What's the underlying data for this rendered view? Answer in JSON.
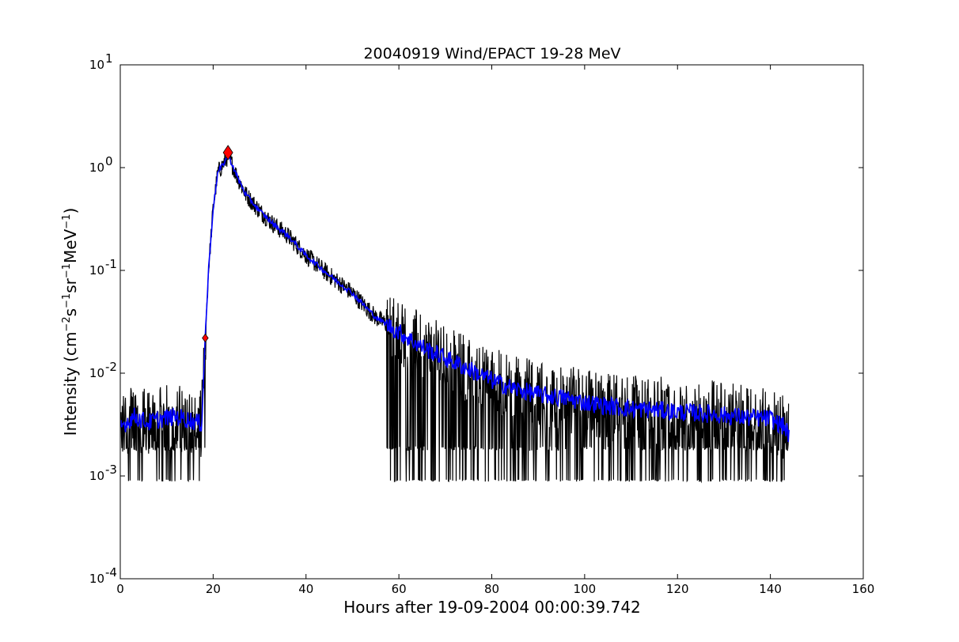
{
  "chart_data": {
    "type": "line",
    "title": "20040919 Wind/EPACT 19-28 MeV",
    "xlabel": "Hours after 19-09-2004 00:00:39.742",
    "ylabel": {
      "prefix": "Intensity (cm",
      "sup1": "−2",
      "mid1": "s",
      "sup2": "−1",
      "mid2": "sr",
      "sup3": "−1",
      "mid3": "MeV",
      "sup4": "−1",
      "suffix": ")"
    },
    "xlim": [
      0,
      160
    ],
    "ylim": [
      0.0001,
      10
    ],
    "yscale": "log",
    "grid": false,
    "xticks": [
      0,
      20,
      40,
      60,
      80,
      100,
      120,
      140,
      160
    ],
    "xtick_labels": [
      "0",
      "20",
      "40",
      "60",
      "80",
      "100",
      "120",
      "140",
      "160"
    ],
    "yticks": [
      0.0001,
      0.001,
      0.01,
      0.1,
      1,
      10
    ],
    "ytick_labels": [
      {
        "base": "10",
        "exp": "-4"
      },
      {
        "base": "10",
        "exp": "-3"
      },
      {
        "base": "10",
        "exp": "-2"
      },
      {
        "base": "10",
        "exp": "-1"
      },
      {
        "base": "10",
        "exp": "0"
      },
      {
        "base": "10",
        "exp": "1"
      }
    ],
    "series": [
      {
        "kind": "raw",
        "color": "#000000",
        "x_range": [
          0,
          144
        ],
        "baseline": 0.0035,
        "floor": 0.00088,
        "peak_value": 1.4
      },
      {
        "kind": "smoothed",
        "color": "#0000ff",
        "points": [
          [
            0,
            0.003
          ],
          [
            3,
            0.0038
          ],
          [
            6,
            0.0033
          ],
          [
            9,
            0.0036
          ],
          [
            12,
            0.0038
          ],
          [
            15,
            0.0035
          ],
          [
            17.5,
            0.0032
          ],
          [
            18.3,
            0.022
          ],
          [
            19,
            0.1
          ],
          [
            20,
            0.4
          ],
          [
            21,
            0.9
          ],
          [
            22,
            1.05
          ],
          [
            23.2,
            1.3
          ],
          [
            24,
            1.1
          ],
          [
            25,
            0.85
          ],
          [
            27,
            0.55
          ],
          [
            30,
            0.38
          ],
          [
            33,
            0.28
          ],
          [
            36,
            0.22
          ],
          [
            40,
            0.14
          ],
          [
            45,
            0.09
          ],
          [
            50,
            0.06
          ],
          [
            55,
            0.035
          ],
          [
            60,
            0.025
          ],
          [
            65,
            0.018
          ],
          [
            70,
            0.014
          ],
          [
            75,
            0.011
          ],
          [
            80,
            0.0085
          ],
          [
            85,
            0.007
          ],
          [
            90,
            0.0062
          ],
          [
            95,
            0.0058
          ],
          [
            100,
            0.0052
          ],
          [
            105,
            0.0048
          ],
          [
            110,
            0.0045
          ],
          [
            115,
            0.0044
          ],
          [
            120,
            0.0042
          ],
          [
            125,
            0.0041
          ],
          [
            130,
            0.0039
          ],
          [
            135,
            0.0037
          ],
          [
            140,
            0.0036
          ],
          [
            143,
            0.003
          ],
          [
            144,
            0.0025
          ]
        ]
      }
    ],
    "markers": [
      {
        "x": 18.3,
        "y": 0.022,
        "shape": "diamond",
        "size": "small",
        "color": "#ff0000"
      },
      {
        "x": 23.2,
        "y": 1.4,
        "shape": "diamond",
        "size": "large",
        "color": "#ff0000"
      }
    ]
  }
}
